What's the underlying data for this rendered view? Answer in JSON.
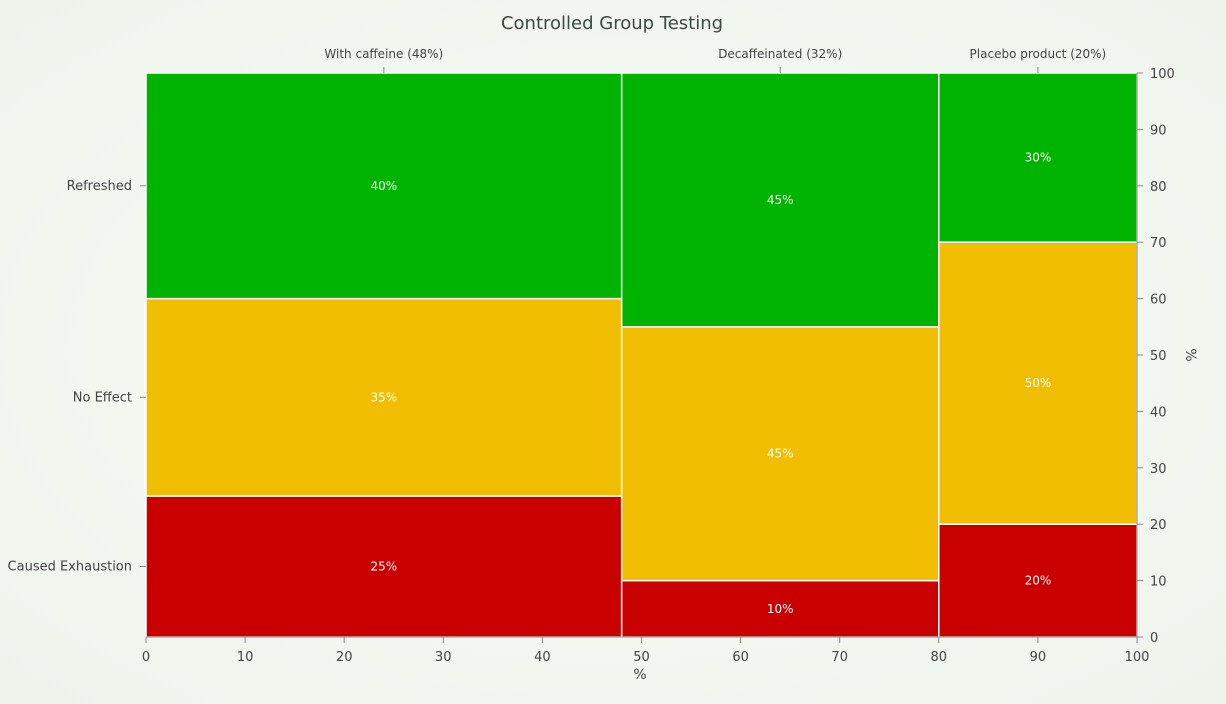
{
  "chart_data": {
    "type": "mosaic",
    "title": "Controlled Group Testing",
    "xlabel": "%",
    "ylabel": "%",
    "xlim": [
      0,
      100
    ],
    "ylim": [
      0,
      100
    ],
    "x_ticks": [
      0,
      10,
      20,
      30,
      40,
      50,
      60,
      70,
      80,
      90,
      100
    ],
    "y_ticks": [
      0,
      10,
      20,
      30,
      40,
      50,
      60,
      70,
      80,
      90,
      100
    ],
    "columns": [
      {
        "label": "With caffeine (48%)",
        "width": 48,
        "segments": [
          {
            "category": "Caused Exhaustion",
            "value": 25,
            "label": "25%"
          },
          {
            "category": "No Effect",
            "value": 35,
            "label": "35%"
          },
          {
            "category": "Refreshed",
            "value": 40,
            "label": "40%"
          }
        ]
      },
      {
        "label": "Decaffeinated (32%)",
        "width": 32,
        "segments": [
          {
            "category": "Caused Exhaustion",
            "value": 10,
            "label": "10%"
          },
          {
            "category": "No Effect",
            "value": 45,
            "label": "45%"
          },
          {
            "category": "Refreshed",
            "value": 45,
            "label": "45%"
          }
        ]
      },
      {
        "label": "Placebo product (20%)",
        "width": 20,
        "segments": [
          {
            "category": "Caused Exhaustion",
            "value": 20,
            "label": "20%"
          },
          {
            "category": "No Effect",
            "value": 50,
            "label": "50%"
          },
          {
            "category": "Refreshed",
            "value": 30,
            "label": "30%"
          }
        ]
      }
    ],
    "row_labels": [
      {
        "category": "Refreshed",
        "label": "Refreshed"
      },
      {
        "category": "No Effect",
        "label": "No Effect"
      },
      {
        "category": "Caused Exhaustion",
        "label": "Caused Exhaustion"
      }
    ],
    "colors": {
      "Refreshed": "#00b300",
      "No Effect": "#f0bd00",
      "Caused Exhaustion": "#c90000"
    },
    "grid": false
  }
}
